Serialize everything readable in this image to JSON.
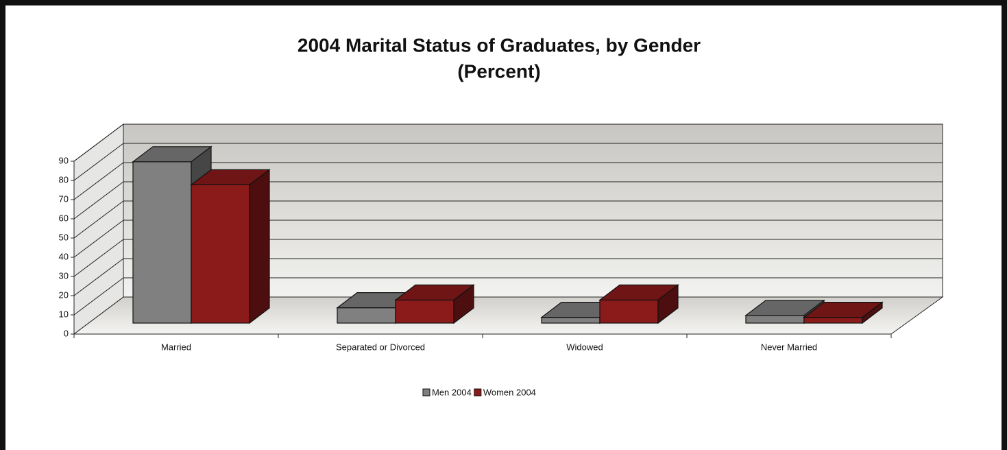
{
  "chart_data": {
    "type": "bar3d",
    "title": "2004 Marital Status of Graduates, by Gender",
    "subtitle": "(Percent)",
    "categories": [
      "Married",
      "Separated or Divorced",
      "Widowed",
      "Never Married"
    ],
    "series": [
      {
        "name": "Men 2004",
        "color": "#808080",
        "values": [
          84,
          8,
          3,
          4
        ]
      },
      {
        "name": "Women 2004",
        "color": "#8b1a1a",
        "values": [
          72,
          12,
          12,
          3
        ]
      }
    ],
    "ylim": [
      0,
      90
    ],
    "yticks": [
      0,
      10,
      20,
      30,
      40,
      50,
      60,
      70,
      80,
      90
    ],
    "grid": true
  }
}
